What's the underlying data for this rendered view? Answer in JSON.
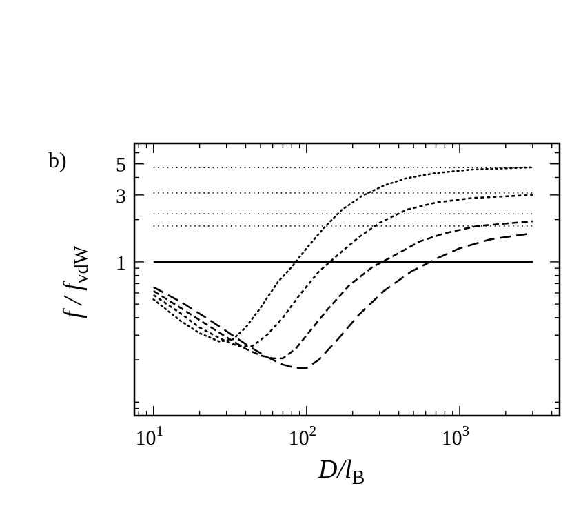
{
  "chart_data": {
    "type": "line",
    "panel_label": "b)",
    "xlabel": {
      "main": "D/l",
      "sub": "B"
    },
    "ylabel": {
      "main": "f / f",
      "sub": "vdW"
    },
    "x_scale": "log",
    "y_scale": "log",
    "xlim": [
      7.5,
      4500
    ],
    "ylim": [
      0.08,
      7.0
    ],
    "x_ticks": [
      {
        "value": 10,
        "base": "10",
        "exp": "1"
      },
      {
        "value": 100,
        "base": "10",
        "exp": "2"
      },
      {
        "value": 1000,
        "base": "10",
        "exp": "3"
      }
    ],
    "y_ticks": [
      {
        "value": 1,
        "label": "1"
      },
      {
        "value": 3,
        "label": "3"
      },
      {
        "value": 5,
        "label": "5"
      }
    ],
    "reference_lines": [
      {
        "y": 1,
        "style": "solid"
      },
      {
        "y": 1.8,
        "style": "dotted"
      },
      {
        "y": 2.2,
        "style": "dotted"
      },
      {
        "y": 3.1,
        "style": "dotted"
      },
      {
        "y": 4.7,
        "style": "dotted"
      }
    ],
    "series": [
      {
        "style": "dotted",
        "points": [
          [
            10,
            0.54
          ],
          [
            15,
            0.38
          ],
          [
            20,
            0.31
          ],
          [
            27,
            0.27
          ],
          [
            33,
            0.28
          ],
          [
            40,
            0.34
          ],
          [
            50,
            0.47
          ],
          [
            65,
            0.72
          ],
          [
            80,
            0.92
          ],
          [
            100,
            1.25
          ],
          [
            130,
            1.75
          ],
          [
            170,
            2.35
          ],
          [
            230,
            2.95
          ],
          [
            320,
            3.5
          ],
          [
            450,
            3.95
          ],
          [
            700,
            4.3
          ],
          [
            1200,
            4.55
          ],
          [
            3000,
            4.72
          ]
        ]
      },
      {
        "style": "short-dash-dot",
        "points": [
          [
            10,
            0.58
          ],
          [
            15,
            0.43
          ],
          [
            20,
            0.34
          ],
          [
            28,
            0.28
          ],
          [
            36,
            0.25
          ],
          [
            44,
            0.25
          ],
          [
            55,
            0.3
          ],
          [
            70,
            0.4
          ],
          [
            90,
            0.58
          ],
          [
            120,
            0.85
          ],
          [
            160,
            1.12
          ],
          [
            220,
            1.5
          ],
          [
            300,
            1.9
          ],
          [
            450,
            2.35
          ],
          [
            700,
            2.65
          ],
          [
            1200,
            2.85
          ],
          [
            3000,
            3.0
          ]
        ]
      },
      {
        "style": "short-dash",
        "points": [
          [
            10,
            0.62
          ],
          [
            15,
            0.47
          ],
          [
            22,
            0.36
          ],
          [
            30,
            0.29
          ],
          [
            40,
            0.24
          ],
          [
            50,
            0.215
          ],
          [
            60,
            0.205
          ],
          [
            70,
            0.205
          ],
          [
            85,
            0.24
          ],
          [
            105,
            0.32
          ],
          [
            140,
            0.47
          ],
          [
            190,
            0.68
          ],
          [
            270,
            0.92
          ],
          [
            380,
            1.12
          ],
          [
            550,
            1.4
          ],
          [
            800,
            1.6
          ],
          [
            1300,
            1.8
          ],
          [
            3000,
            1.95
          ]
        ]
      },
      {
        "style": "long-dash",
        "points": [
          [
            10,
            0.66
          ],
          [
            15,
            0.52
          ],
          [
            22,
            0.4
          ],
          [
            30,
            0.32
          ],
          [
            42,
            0.25
          ],
          [
            55,
            0.21
          ],
          [
            70,
            0.185
          ],
          [
            85,
            0.175
          ],
          [
            100,
            0.175
          ],
          [
            120,
            0.2
          ],
          [
            160,
            0.28
          ],
          [
            220,
            0.42
          ],
          [
            320,
            0.62
          ],
          [
            480,
            0.85
          ],
          [
            700,
            1.05
          ],
          [
            1000,
            1.25
          ],
          [
            1600,
            1.45
          ],
          [
            3000,
            1.6
          ]
        ]
      }
    ]
  }
}
